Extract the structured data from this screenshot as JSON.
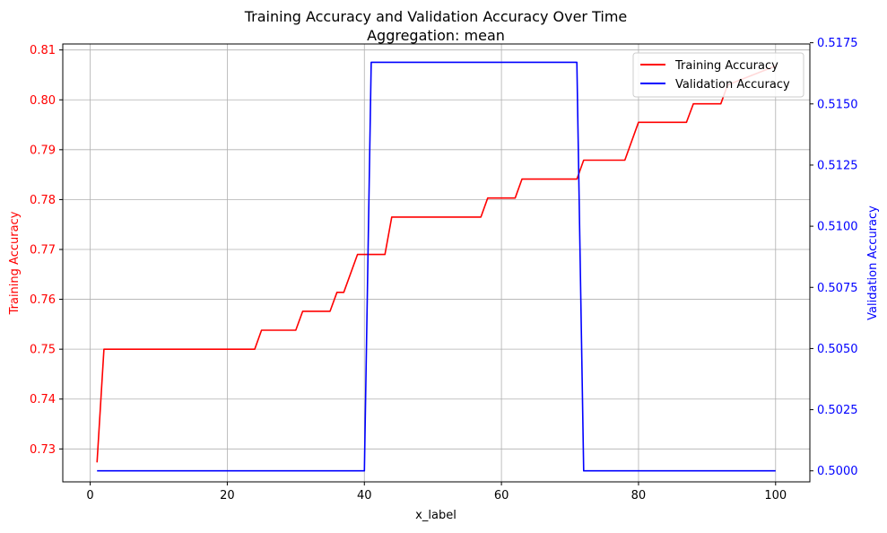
{
  "chart_data": {
    "type": "line",
    "title": "Training Accuracy and Validation Accuracy Over Time",
    "subtitle": "Aggregation: mean",
    "xlabel": "x_label",
    "xlim": [
      -4,
      105
    ],
    "xticks": [
      0,
      20,
      40,
      60,
      80,
      100
    ],
    "grid": true,
    "legend_position": "top-right",
    "axes": {
      "left": {
        "label": "Training Accuracy",
        "color": "#ff0000",
        "ylim": [
          0.7234,
          0.8112
        ],
        "ticks": [
          0.73,
          0.74,
          0.75,
          0.76,
          0.77,
          0.78,
          0.79,
          0.8,
          0.81
        ],
        "tick_labels": [
          "0.73",
          "0.74",
          "0.75",
          "0.76",
          "0.77",
          "0.78",
          "0.79",
          "0.80",
          "0.81"
        ]
      },
      "right": {
        "label": "Validation Accuracy",
        "color": "#0000ff",
        "ylim": [
          0.49955,
          0.51745
        ],
        "ticks": [
          0.5,
          0.5025,
          0.505,
          0.5075,
          0.51,
          0.5125,
          0.515,
          0.5175
        ],
        "tick_labels": [
          "0.5000",
          "0.5025",
          "0.5050",
          "0.5075",
          "0.5100",
          "0.5125",
          "0.5150",
          "0.5175"
        ]
      }
    },
    "series": [
      {
        "name": "Training Accuracy",
        "axis": "left",
        "color": "#ff0000",
        "x": [
          1,
          2,
          24,
          25,
          30,
          31,
          35,
          36,
          37,
          39,
          43,
          44,
          57,
          58,
          62,
          63,
          71,
          72,
          78,
          80,
          87,
          88,
          92,
          93,
          100
        ],
        "y": [
          0.7273,
          0.75,
          0.75,
          0.7538,
          0.7538,
          0.7576,
          0.7576,
          0.7614,
          0.7614,
          0.769,
          0.769,
          0.7765,
          0.7765,
          0.7803,
          0.7803,
          0.7841,
          0.7841,
          0.7879,
          0.7879,
          0.7955,
          0.7955,
          0.7992,
          0.7992,
          0.803,
          0.8068
        ]
      },
      {
        "name": "Validation Accuracy",
        "axis": "right",
        "color": "#0000ff",
        "x": [
          1,
          40,
          41,
          71,
          72,
          100
        ],
        "y": [
          0.5,
          0.5,
          0.5167,
          0.5167,
          0.5,
          0.5
        ]
      }
    ]
  }
}
